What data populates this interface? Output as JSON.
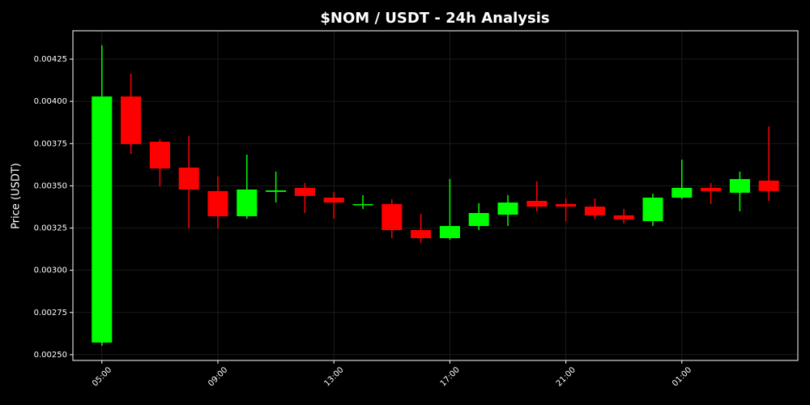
{
  "chart_data": {
    "type": "candlestick",
    "title": "$NOM / USDT - 24h Analysis",
    "y_label": "Price (USDT)",
    "categories": [
      "05:00",
      null,
      null,
      null,
      "09:00",
      null,
      null,
      null,
      "13:00",
      null,
      null,
      null,
      "17:00",
      null,
      null,
      null,
      "21:00",
      null,
      null,
      null,
      "01:00",
      null,
      null,
      null
    ],
    "open": [
      0.002572,
      0.004029,
      0.003761,
      0.003608,
      0.003469,
      0.00332,
      0.003464,
      0.003488,
      0.00343,
      0.003387,
      0.003392,
      0.003238,
      0.00319,
      0.003262,
      0.003329,
      0.003411,
      0.003392,
      0.003377,
      0.003325,
      0.003291,
      0.00343,
      0.003488,
      0.003459,
      0.003531
    ],
    "high": [
      0.004332,
      0.004164,
      0.003775,
      0.003795,
      0.003555,
      0.003684,
      0.003584,
      0.003517,
      0.003464,
      0.003445,
      0.003421,
      0.003334,
      0.00354,
      0.003397,
      0.003445,
      0.003526,
      0.003425,
      0.003425,
      0.003363,
      0.003454,
      0.003655,
      0.003517,
      0.003584,
      0.003852
    ],
    "low": [
      0.002553,
      0.003689,
      0.003497,
      0.003248,
      0.003248,
      0.003305,
      0.003401,
      0.003339,
      0.003305,
      0.003363,
      0.00319,
      0.003162,
      0.003181,
      0.003238,
      0.003262,
      0.003349,
      0.003291,
      0.003305,
      0.003277,
      0.003262,
      0.003421,
      0.003392,
      0.003349,
      0.003411
    ],
    "close": [
      0.004029,
      0.003747,
      0.003603,
      0.003478,
      0.00332,
      0.003478,
      0.003473,
      0.00344,
      0.003401,
      0.003392,
      0.003238,
      0.00319,
      0.003262,
      0.003339,
      0.003401,
      0.003377,
      0.003377,
      0.003325,
      0.003301,
      0.00343,
      0.003488,
      0.003469,
      0.00354,
      0.003469
    ],
    "up_color": "#00ff00",
    "down_color": "#ff0000",
    "ylim": [
      0.002466,
      0.004418
    ],
    "yticks": [
      {
        "value": 0.0025,
        "label": "0.00250"
      },
      0.00275,
      {
        "value": 0.003,
        "label": "0.00300"
      },
      0.00325,
      {
        "value": 0.0035,
        "label": "0.00350"
      },
      0.00375,
      {
        "value": 0.004,
        "label": "0.00400"
      },
      0.00425
    ],
    "grid": true
  }
}
